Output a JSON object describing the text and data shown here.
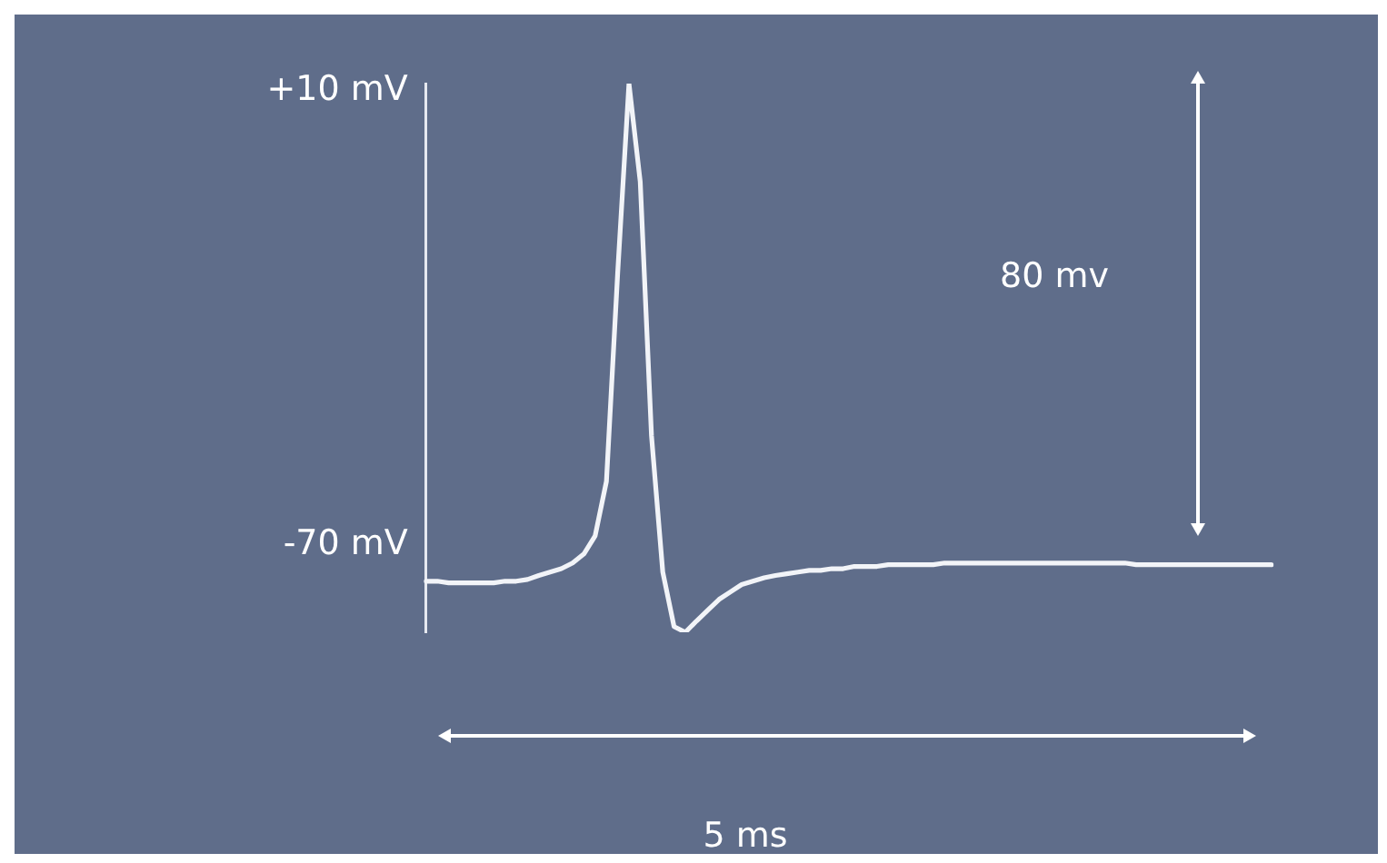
{
  "chart_data": {
    "type": "line",
    "categories": [
      null,
      null,
      null,
      null,
      null,
      null,
      null,
      null,
      null,
      null,
      null,
      null,
      null,
      null,
      null,
      null,
      null,
      null,
      null,
      null,
      null,
      null,
      null,
      null,
      null,
      null,
      null,
      null,
      null,
      null,
      null,
      null,
      null,
      null,
      null,
      null,
      null,
      null,
      null,
      null,
      null,
      null,
      null,
      null,
      null,
      null,
      null,
      null,
      null,
      null,
      null,
      null,
      null,
      null,
      null,
      null,
      null,
      null,
      null,
      null,
      null,
      null,
      null,
      null,
      null,
      null,
      null,
      null,
      null,
      null,
      null,
      null,
      null,
      null,
      null,
      null
    ],
    "series": [
      {
        "color": "#f2f4f8",
        "values": [
          -76.4,
          -76.4,
          -76.7,
          -76.7,
          -76.7,
          -76.7,
          -76.7,
          -76.4,
          -76.4,
          -76.1,
          -75.4,
          -74.8,
          -74.2,
          -73.2,
          -71.6,
          -68.4,
          -58.8,
          -22,
          11.3,
          -6,
          -50.8,
          -74.8,
          -84.4,
          -85.4,
          -83.4,
          -81.5,
          -79.6,
          -78.3,
          -77,
          -76.4,
          -75.8,
          -75.4,
          -75.1,
          -74.8,
          -74.5,
          -74.5,
          -74.2,
          -74.2,
          -73.8,
          -73.8,
          -73.8,
          -73.5,
          -73.5,
          -73.5,
          -73.5,
          -73.5,
          -73.2,
          -73.2,
          -73.2,
          -73.2,
          -73.2,
          -73.2,
          -73.2,
          -73.2,
          -73.2,
          -73.2,
          -73.2,
          -73.2,
          -73.2,
          -73.2,
          -73.2,
          -73.2,
          -73.2,
          -73.5,
          -73.5,
          -73.5,
          -73.5,
          -73.5,
          -73.5,
          -73.5,
          -73.5,
          -73.5,
          -73.5,
          -73.5,
          -73.5,
          -73.5
        ]
      }
    ],
    "ylim": [
      -85.4,
      11.3
    ],
    "yticks": [
      {
        "value": 10,
        "label": "+10 mV"
      },
      {
        "value": -70,
        "label": "-70 mV"
      }
    ],
    "tick_labels": "y",
    "grid": false,
    "legend": false,
    "marker": "none",
    "line_style": "solid",
    "annotations": [
      "80 mv",
      "5 ms"
    ]
  }
}
